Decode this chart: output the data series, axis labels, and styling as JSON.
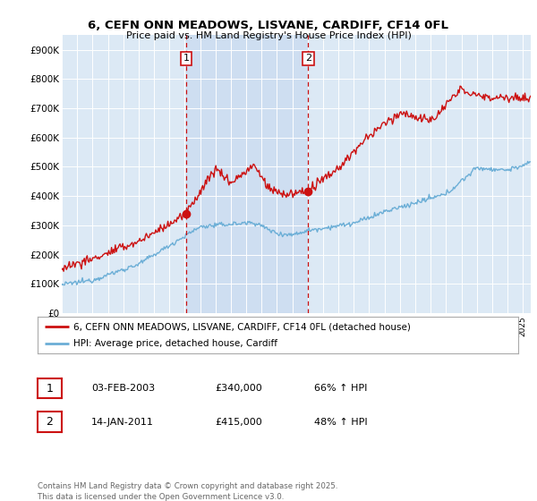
{
  "title": "6, CEFN ONN MEADOWS, LISVANE, CARDIFF, CF14 0FL",
  "subtitle": "Price paid vs. HM Land Registry's House Price Index (HPI)",
  "background_color": "#ffffff",
  "plot_bg_color": "#dce9f5",
  "shade_color": "#c5d8ef",
  "yticks": [
    0,
    100000,
    200000,
    300000,
    400000,
    500000,
    600000,
    700000,
    800000,
    900000
  ],
  "ytick_labels": [
    "£0",
    "£100K",
    "£200K",
    "£300K",
    "£400K",
    "£500K",
    "£600K",
    "£700K",
    "£800K",
    "£900K"
  ],
  "hpi_color": "#6baed6",
  "price_color": "#cc1111",
  "vline_color": "#cc1111",
  "marker1_year": 2003.09,
  "marker2_year": 2011.04,
  "legend_label_red": "6, CEFN ONN MEADOWS, LISVANE, CARDIFF, CF14 0FL (detached house)",
  "legend_label_blue": "HPI: Average price, detached house, Cardiff",
  "table_row1": [
    "1",
    "03-FEB-2003",
    "£340,000",
    "66% ↑ HPI"
  ],
  "table_row2": [
    "2",
    "14-JAN-2011",
    "£415,000",
    "48% ↑ HPI"
  ],
  "footnote": "Contains HM Land Registry data © Crown copyright and database right 2025.\nThis data is licensed under the Open Government Licence v3.0.",
  "xmin": 1995,
  "xmax": 2025.5,
  "ymin": 0,
  "ymax": 950000
}
